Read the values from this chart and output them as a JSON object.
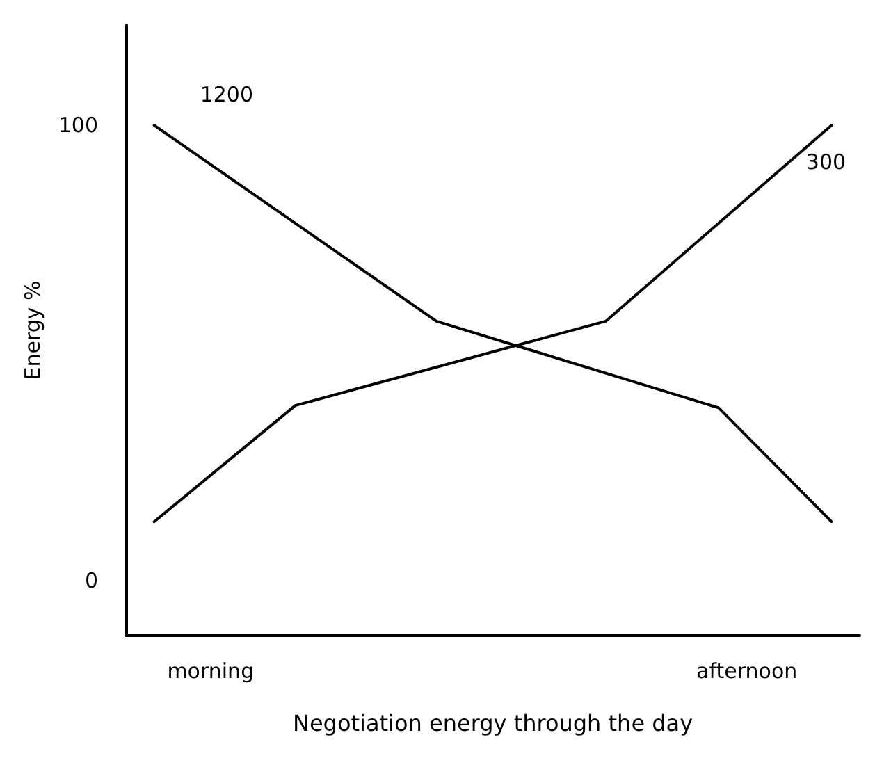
{
  "chart_data": {
    "type": "line",
    "xlabel": "Negotiation energy through the day",
    "ylabel": "Energy %",
    "categories": [
      null,
      null,
      null,
      "morning",
      null,
      null,
      null,
      null,
      null,
      null,
      null,
      null,
      null,
      null,
      null,
      null,
      null,
      null,
      null,
      null,
      null,
      null,
      "afternoon",
      null,
      null,
      null,
      null
    ],
    "ylim": [
      -12,
      122
    ],
    "yticks": [
      0,
      100
    ],
    "series": [
      {
        "name": "1200",
        "color": "#000000",
        "values": [
          null,
          100,
          null,
          null,
          null,
          null,
          null,
          null,
          null,
          null,
          null,
          57,
          null,
          null,
          null,
          null,
          null,
          null,
          null,
          null,
          null,
          38,
          null,
          null,
          null,
          13,
          null
        ]
      },
      {
        "name": "300",
        "color": "#000000",
        "values": [
          null,
          13,
          null,
          null,
          null,
          null,
          38.5,
          null,
          null,
          null,
          null,
          null,
          null,
          null,
          null,
          null,
          null,
          57,
          null,
          null,
          null,
          null,
          null,
          null,
          null,
          100,
          null
        ]
      }
    ],
    "grid": false,
    "marker": "none",
    "line_style": "solid"
  }
}
